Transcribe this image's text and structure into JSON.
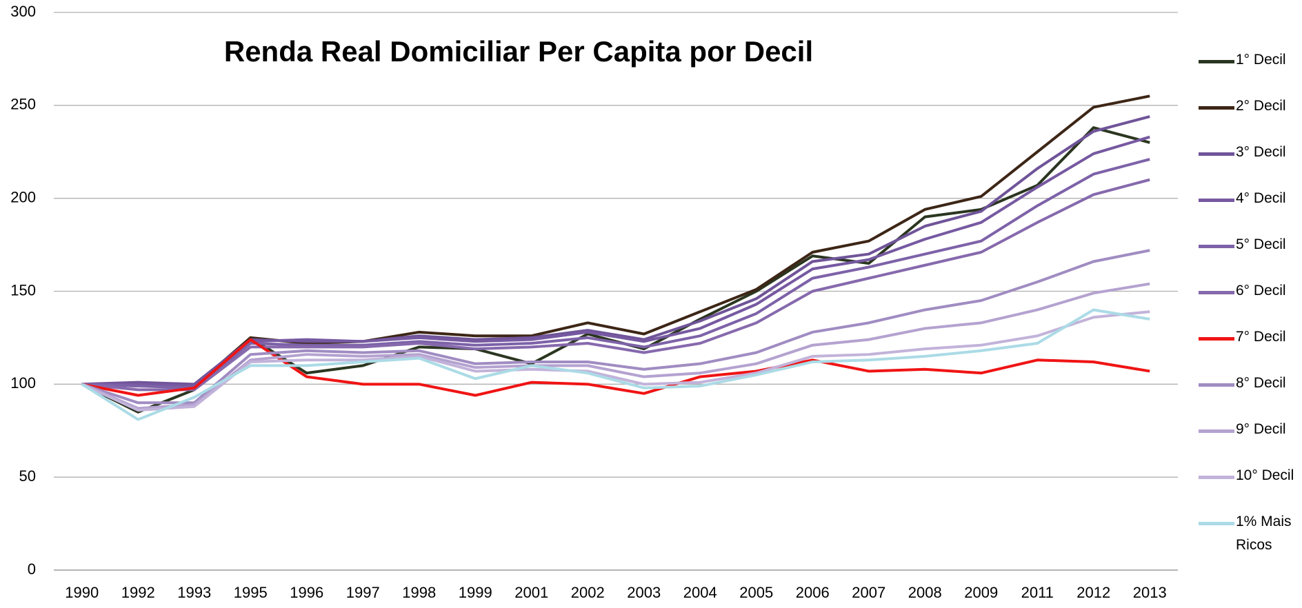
{
  "chart_data": {
    "type": "line",
    "title": "Renda Real Domiciliar Per Capita por Decil",
    "categories": [
      "1990",
      "1992",
      "1993",
      "1995",
      "1996",
      "1997",
      "1998",
      "1999",
      "2001",
      "2002",
      "2003",
      "2004",
      "2005",
      "2006",
      "2007",
      "2008",
      "2009",
      "2011",
      "2012",
      "2013"
    ],
    "ylim": [
      0,
      300
    ],
    "yticks": [
      0,
      50,
      100,
      150,
      200,
      250,
      300
    ],
    "grid": true,
    "legend": "right",
    "series": [
      {
        "name": "1° Decil",
        "color": "#2b3620",
        "values": [
          100,
          85,
          97,
          125,
          106,
          110,
          120,
          119,
          111,
          127,
          119,
          135,
          150,
          169,
          165,
          190,
          194,
          207,
          238,
          230
        ]
      },
      {
        "name": "2° Decil",
        "color": "#3d2616",
        "values": [
          100,
          99,
          99,
          125,
          122,
          123,
          128,
          126,
          126,
          133,
          127,
          139,
          151,
          171,
          177,
          194,
          201,
          225,
          249,
          255
        ]
      },
      {
        "name": "3° Decil",
        "color": "#6f5499",
        "values": [
          100,
          101,
          100,
          124,
          123,
          123,
          126,
          124,
          125,
          129,
          124,
          134,
          146,
          166,
          170,
          185,
          193,
          216,
          236,
          244
        ]
      },
      {
        "name": "4° Decil",
        "color": "#7659a1",
        "values": [
          100,
          100,
          99,
          123,
          124,
          123,
          125,
          123,
          124,
          128,
          123,
          130,
          143,
          162,
          167,
          178,
          187,
          206,
          224,
          233
        ]
      },
      {
        "name": "5° Decil",
        "color": "#7d62a8",
        "values": [
          100,
          99,
          98,
          122,
          121,
          121,
          123,
          121,
          122,
          125,
          120,
          126,
          138,
          157,
          163,
          170,
          177,
          196,
          213,
          221
        ]
      },
      {
        "name": "6° Decil",
        "color": "#8669ad",
        "values": [
          100,
          97,
          97,
          120,
          120,
          120,
          122,
          119,
          120,
          122,
          117,
          122,
          133,
          150,
          157,
          164,
          171,
          187,
          202,
          210
        ]
      },
      {
        "name": "7° Decil",
        "color": "#f01414",
        "values": [
          100,
          94,
          98,
          124,
          104,
          100,
          100,
          94,
          101,
          100,
          95,
          104,
          107,
          113,
          107,
          108,
          106,
          113,
          112,
          107
        ]
      },
      {
        "name": "8° Decil",
        "color": "#a08cc2",
        "values": [
          100,
          90,
          90,
          116,
          118,
          117,
          118,
          111,
          112,
          112,
          108,
          111,
          117,
          128,
          133,
          140,
          145,
          155,
          166,
          172
        ]
      },
      {
        "name": "9° Decil",
        "color": "#b4a2d0",
        "values": [
          100,
          87,
          89,
          113,
          116,
          115,
          116,
          109,
          110,
          110,
          104,
          106,
          111,
          121,
          124,
          130,
          133,
          140,
          149,
          154
        ]
      },
      {
        "name": "10° Decil",
        "color": "#c2b3da",
        "values": [
          100,
          86,
          88,
          112,
          113,
          113,
          115,
          107,
          108,
          107,
          100,
          101,
          106,
          115,
          116,
          119,
          121,
          126,
          136,
          139
        ]
      },
      {
        "name": "1% Mais Ricos",
        "color": "#abdbe6",
        "values": [
          100,
          81,
          93,
          110,
          110,
          112,
          114,
          103,
          110,
          106,
          98,
          99,
          105,
          112,
          113,
          115,
          118,
          122,
          140,
          135
        ]
      }
    ]
  }
}
